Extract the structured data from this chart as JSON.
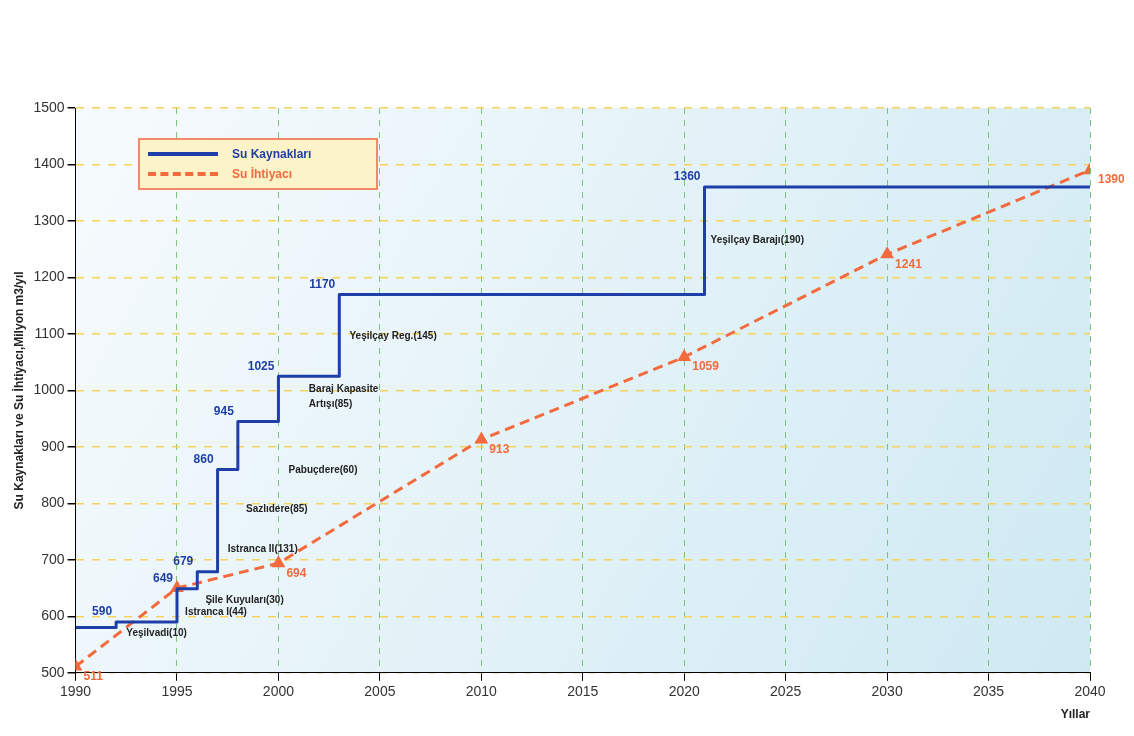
{
  "chart_data": {
    "type": "line",
    "xlabel": "Yıllar",
    "ylabel": "Su Kaynakları ve Su İhtiyacı,Milyon m3/yıl",
    "xlim": [
      1990,
      2040
    ],
    "xticks": [
      1990,
      1995,
      2000,
      2005,
      2010,
      2015,
      2020,
      2025,
      2030,
      2035,
      2040
    ],
    "ylim": [
      500,
      1500
    ],
    "yticks": [
      500,
      600,
      700,
      800,
      900,
      1000,
      1100,
      1200,
      1300,
      1400,
      1500
    ],
    "grid": true,
    "legend": "top left",
    "series": [
      {
        "name": "Su Kaynakları",
        "type": "step",
        "color": "#1f3fa8",
        "line_style": "solid",
        "marker": "none",
        "x": [
          1990,
          1992,
          1995,
          1996,
          1997,
          1998,
          2000,
          2003,
          2021,
          2040
        ],
        "values": [
          580,
          590,
          649,
          679,
          860,
          945,
          1025,
          1170,
          1360,
          1360
        ],
        "value_labels": [
          null,
          "590",
          "649",
          "679",
          "860",
          "945",
          "1025",
          "1170",
          "1360",
          null
        ]
      },
      {
        "name": "Su İhtiyacı",
        "type": "line",
        "color": "#f26a3d",
        "line_style": "dashed",
        "marker": "triangle",
        "x": [
          1990,
          1995,
          2000,
          2010,
          2020,
          2030,
          2040
        ],
        "values": [
          511,
          650,
          694,
          913,
          1059,
          1241,
          1390
        ],
        "value_labels": [
          "511",
          null,
          "694",
          "913",
          "1059",
          "1241",
          "1390"
        ]
      }
    ],
    "annotations": [
      "Yeşilvadi(10)",
      "Istranca I(44)",
      "Şile Kuyuları(30)",
      "Istranca II(131)",
      "Sazlıdere(85)",
      "Pabuçdere(60)",
      "Baraj Kapasite Artışı(85)",
      "Yeşilçay Reg.(145)",
      "Yeşilçay Barajı(190)"
    ]
  }
}
